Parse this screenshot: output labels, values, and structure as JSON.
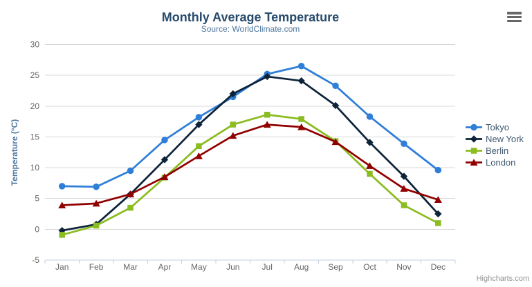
{
  "chart": {
    "credits": "Highcharts.com",
    "menu_icon": "hamburger-export-menu"
  },
  "colors": {
    "title_text": "#274b6d",
    "subtitle_text": "#4d759e",
    "axis_title_text": "#4d759e",
    "axis_label_text": "#666666",
    "legend_text": "#3E576F",
    "grid_line": "#D8D8D8",
    "axis_line": "#C0D0E0",
    "credits_text": "#909090",
    "menu_icon": "#666666",
    "background": "#FFFFFF",
    "series_tokyo": "#2f7ed8",
    "series_new_york": "#0d233a",
    "series_berlin": "#8bbc21",
    "series_london": "#910000"
  },
  "chart_data": {
    "type": "line",
    "title": "Monthly Average Temperature",
    "subtitle": "Source: WorldClimate.com",
    "xlabel": "",
    "ylabel": "Temperature (°C)",
    "categories": [
      "Jan",
      "Feb",
      "Mar",
      "Apr",
      "May",
      "Jun",
      "Jul",
      "Aug",
      "Sep",
      "Oct",
      "Nov",
      "Dec"
    ],
    "ylim": [
      -5,
      30
    ],
    "ytick_interval": 5,
    "yticks": [
      -5,
      0,
      5,
      10,
      15,
      20,
      25,
      30
    ],
    "grid": "horizontal-only",
    "legend_position": "right-middle-vertical",
    "series": [
      {
        "name": "Tokyo",
        "color": "#2f7ed8",
        "marker": "circle",
        "values": [
          7.0,
          6.9,
          9.5,
          14.5,
          18.2,
          21.5,
          25.2,
          26.5,
          23.3,
          18.3,
          13.9,
          9.6
        ]
      },
      {
        "name": "New York",
        "color": "#0d233a",
        "marker": "diamond",
        "values": [
          -0.2,
          0.8,
          5.7,
          11.3,
          17.0,
          22.0,
          24.8,
          24.1,
          20.1,
          14.1,
          8.6,
          2.5
        ]
      },
      {
        "name": "Berlin",
        "color": "#8bbc21",
        "marker": "square",
        "values": [
          -0.9,
          0.6,
          3.5,
          8.4,
          13.5,
          17.0,
          18.6,
          17.9,
          14.3,
          9.0,
          3.9,
          1.0
        ]
      },
      {
        "name": "London",
        "color": "#910000",
        "marker": "triangle",
        "values": [
          3.9,
          4.2,
          5.7,
          8.5,
          11.9,
          15.2,
          17.0,
          16.6,
          14.2,
          10.3,
          6.6,
          4.8
        ]
      }
    ]
  }
}
